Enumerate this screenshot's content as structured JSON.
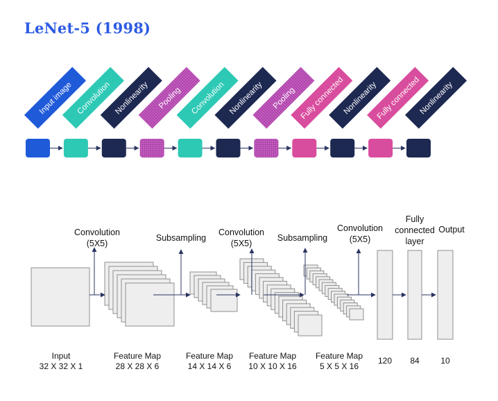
{
  "title": "LeNet-5 (1998)",
  "colors": {
    "input": "#1f5ad9",
    "convolution": "#2ec9b5",
    "nonlinearity": "#1d2951",
    "pooling": "#b84fb5",
    "fully_connected": "#d94d9e",
    "title": "#2d5be3"
  },
  "pipeline": [
    {
      "label": "Input image",
      "type": "input"
    },
    {
      "label": "Convolution",
      "type": "convolution"
    },
    {
      "label": "Nonlinearity",
      "type": "nonlinearity"
    },
    {
      "label": "Pooling",
      "type": "pooling"
    },
    {
      "label": "Convolution",
      "type": "convolution"
    },
    {
      "label": "Nonlinearity",
      "type": "nonlinearity"
    },
    {
      "label": "Pooling",
      "type": "pooling"
    },
    {
      "label": "Fully connected",
      "type": "fully_connected"
    },
    {
      "label": "Nonlinearity",
      "type": "nonlinearity"
    },
    {
      "label": "Fully connected",
      "type": "fully_connected"
    },
    {
      "label": "Nonlinearity",
      "type": "nonlinearity"
    }
  ],
  "architecture": {
    "operations": [
      {
        "lines": [
          "Convolution",
          "(5X5)"
        ]
      },
      {
        "lines": [
          "Subsampling"
        ]
      },
      {
        "lines": [
          "Convolution",
          "(5X5)"
        ]
      },
      {
        "lines": [
          "Subsampling"
        ]
      },
      {
        "lines": [
          "Convolution",
          "(5X5)"
        ]
      },
      {
        "lines": [
          "Fully",
          "connected",
          "layer"
        ]
      },
      {
        "lines": [
          "Output"
        ]
      }
    ],
    "layers": [
      {
        "lines": [
          "Input",
          "32 X 32 X 1"
        ],
        "maps": 1
      },
      {
        "lines": [
          "Feature Map",
          "28 X 28 X 6"
        ],
        "maps": 6
      },
      {
        "lines": [
          "Feature Map",
          "14 X 14 X 6"
        ],
        "maps": 6
      },
      {
        "lines": [
          "Feature Map",
          "10 X 10 X 16"
        ],
        "maps": 16
      },
      {
        "lines": [
          "Feature Map",
          "5 X 5 X 16"
        ],
        "maps": 16
      },
      {
        "lines": [
          "120"
        ],
        "maps": 1
      },
      {
        "lines": [
          "84"
        ],
        "maps": 1
      },
      {
        "lines": [
          "10"
        ],
        "maps": 1
      }
    ]
  }
}
